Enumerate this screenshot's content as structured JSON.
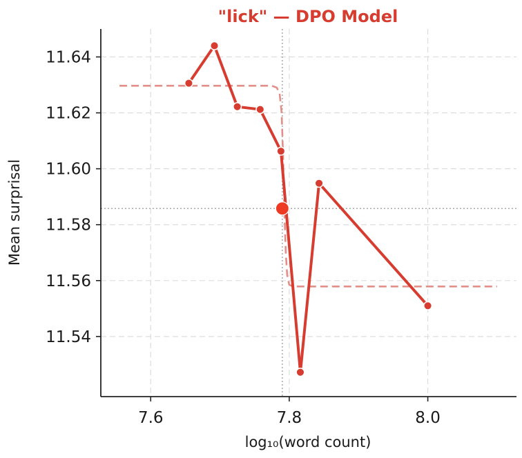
{
  "chart_data": {
    "type": "line",
    "title": "\"lick\"  —  DPO Model",
    "xlabel": "log₁₀(word count)",
    "ylabel": "Mean surprisal",
    "xlim": [
      7.528,
      8.128
    ],
    "ylim": [
      11.5185,
      11.65
    ],
    "xticks": [
      7.6,
      7.8,
      8.0
    ],
    "xtick_labels": [
      "7.6",
      "7.8",
      "8.0"
    ],
    "yticks": [
      11.54,
      11.56,
      11.58,
      11.6,
      11.62,
      11.64
    ],
    "ytick_labels": [
      "11.54",
      "11.56",
      "11.58",
      "11.60",
      "11.62",
      "11.64"
    ],
    "grid": true,
    "colors": {
      "main": "#d63c2f",
      "fit": "#e38e88",
      "highlight": "#ee3a22",
      "ref": "#999999"
    },
    "series": [
      {
        "x": [
          7.655,
          7.692,
          7.725,
          7.758,
          7.788,
          7.816,
          7.843,
          8.0
        ],
        "y": [
          11.6306,
          11.644,
          11.6222,
          11.6212,
          11.6063,
          11.5272,
          11.5948,
          11.551
        ]
      }
    ],
    "fit_curve": {
      "style": "dashed",
      "x": [
        7.555,
        7.775,
        7.782,
        7.786,
        7.789,
        7.791,
        7.793,
        7.795,
        7.797,
        7.8,
        7.806,
        8.1
      ],
      "y": [
        11.6297,
        11.6297,
        11.629,
        11.627,
        11.62,
        11.605,
        11.585,
        11.57,
        11.562,
        11.5585,
        11.5579,
        11.5579
      ]
    },
    "highlight_point": {
      "x": 7.79,
      "y": 11.5858
    },
    "reference_lines": {
      "vertical_x": 7.79,
      "horizontal_y": 11.5858
    }
  }
}
